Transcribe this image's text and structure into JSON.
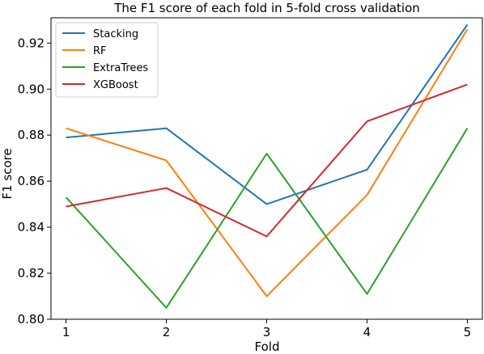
{
  "chart_data": {
    "type": "line",
    "title": "The F1 score of each fold in 5-fold cross validation",
    "xlabel": "Fold",
    "ylabel": "F1 score",
    "x": [
      1,
      2,
      3,
      4,
      5
    ],
    "xlim": [
      0.85,
      5.15
    ],
    "ylim": [
      0.8,
      0.931
    ],
    "yticks": [
      0.8,
      0.82,
      0.84,
      0.86,
      0.88,
      0.9,
      0.92
    ],
    "ytick_labels": [
      "0.80",
      "0.82",
      "0.84",
      "0.86",
      "0.88",
      "0.90",
      "0.92"
    ],
    "xticks": [
      1,
      2,
      3,
      4,
      5
    ],
    "xtick_labels": [
      "1",
      "2",
      "3",
      "4",
      "5"
    ],
    "grid": false,
    "legend_position": "top-left",
    "series": [
      {
        "name": "Stacking",
        "color": "#1f77b4",
        "values": [
          0.879,
          0.883,
          0.85,
          0.865,
          0.928
        ]
      },
      {
        "name": "RF",
        "color": "#ff7f0e",
        "values": [
          0.883,
          0.869,
          0.81,
          0.854,
          0.926
        ]
      },
      {
        "name": "ExtraTrees",
        "color": "#2ca02c",
        "values": [
          0.853,
          0.805,
          0.872,
          0.811,
          0.883
        ]
      },
      {
        "name": "XGBoost",
        "color": "#d62728",
        "values": [
          0.849,
          0.857,
          0.836,
          0.886,
          0.902
        ]
      }
    ]
  }
}
